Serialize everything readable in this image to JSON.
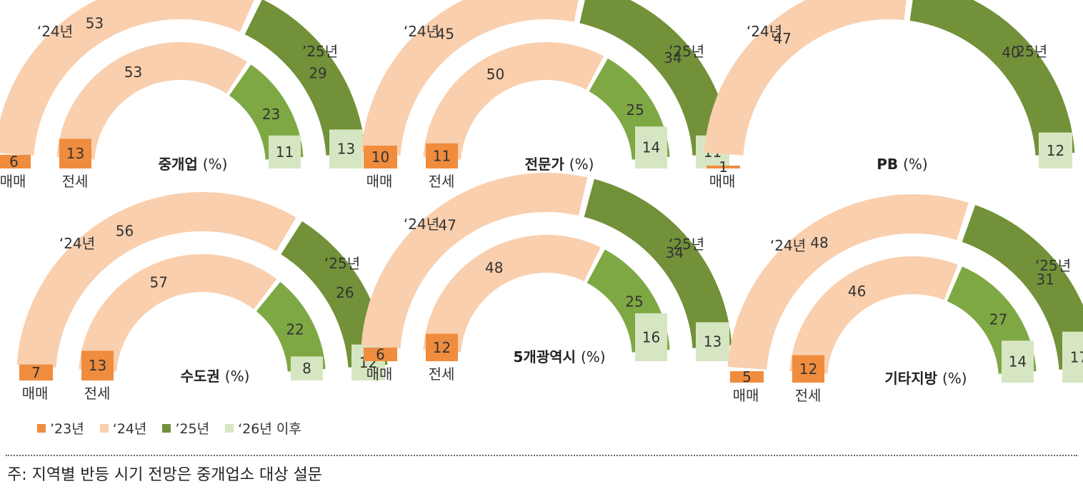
{
  "colors": {
    "y23": "#F08C3E",
    "y24": "#F9CFAE",
    "y25": "#729139",
    "y25_inner": "#7EA844",
    "y26": "#D7E6C2"
  },
  "chart_data": [
    {
      "type": "pie",
      "title": "중개업",
      "unit": "(%)",
      "label_24": "‘24년",
      "label_25": "’25년",
      "label_sale": "매매",
      "label_jeonse": "전세",
      "sale": {
        "y23": 6,
        "y24": 53,
        "y25": 29,
        "y26": 13
      },
      "jeonse": {
        "y23": 13,
        "y24": 53,
        "y25": 23,
        "y26": 11
      }
    },
    {
      "type": "pie",
      "title": "전문가",
      "unit": "(%)",
      "label_24": "‘24년",
      "label_25": "’25년",
      "label_sale": "매매",
      "label_jeonse": "전세",
      "sale": {
        "y23": 10,
        "y24": 45,
        "y25": 34,
        "y26": 11
      },
      "jeonse": {
        "y23": 11,
        "y24": 50,
        "y25": 25,
        "y26": 14
      }
    },
    {
      "type": "pie",
      "title": "PB",
      "unit": "(%)",
      "label_24": "‘24년",
      "label_25": "’25년",
      "label_sale": "매매",
      "sale": {
        "y23": 1,
        "y24": 47,
        "y25": 40,
        "y26": 12
      }
    },
    {
      "type": "pie",
      "title": "수도권",
      "unit": "(%)",
      "label_24": "‘24년",
      "label_25": "‘25년",
      "label_sale": "매매",
      "label_jeonse": "전세",
      "sale": {
        "y23": 7,
        "y24": 56,
        "y25": 26,
        "y26": 12
      },
      "jeonse": {
        "y23": 13,
        "y24": 57,
        "y25": 22,
        "y26": 8
      }
    },
    {
      "type": "pie",
      "title": "5개광역시",
      "unit": "(%)",
      "label_24": "‘24년",
      "label_25": "‘25년",
      "label_sale": "매매",
      "label_jeonse": "전세",
      "sale": {
        "y23": 6,
        "y24": 47,
        "y25": 34,
        "y26": 13
      },
      "jeonse": {
        "y23": 12,
        "y24": 48,
        "y25": 25,
        "y26": 16
      }
    },
    {
      "type": "pie",
      "title": "기타지방",
      "unit": "(%)",
      "label_24": "‘24년",
      "label_25": "‘25년",
      "label_sale": "매매",
      "label_jeonse": "전세",
      "sale": {
        "y23": 5,
        "y24": 48,
        "y25": 31,
        "y26": 17
      },
      "jeonse": {
        "y23": 12,
        "y24": 46,
        "y25": 27,
        "y26": 14
      }
    }
  ],
  "legend": [
    {
      "label": "’23년",
      "color": "#F08C3E"
    },
    {
      "label": "‘24년",
      "color": "#F9CFAE"
    },
    {
      "label": "’25년",
      "color": "#729139"
    },
    {
      "label": "‘26년 이후",
      "color": "#D7E6C2"
    }
  ],
  "footnote": "주: 지역별 반등 시기 전망은 중개업소 대상 설문"
}
